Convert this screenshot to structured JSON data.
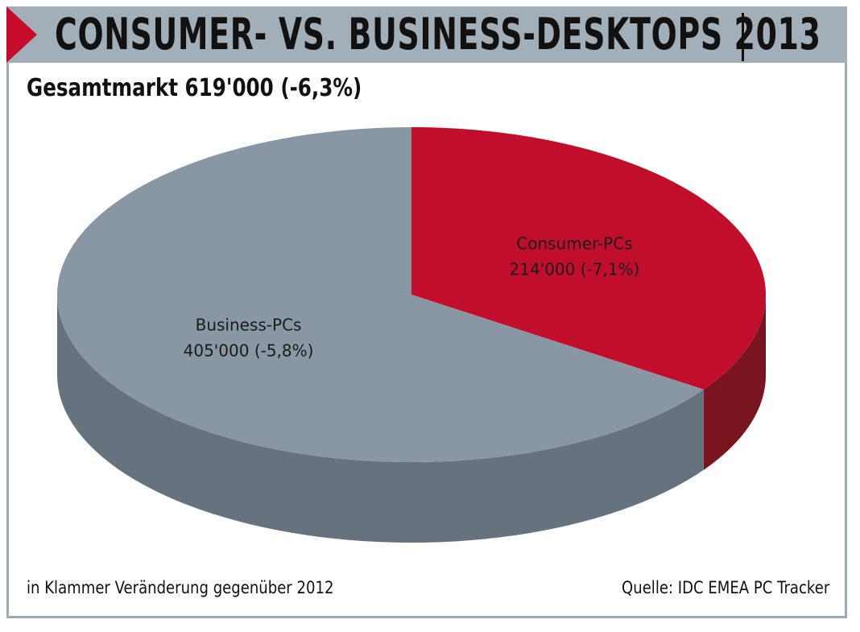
{
  "header": {
    "title": "CONSUMER- VS. BUSINESS-DESKTOPS 2013"
  },
  "subtitle": "Gesamtmarkt 619'000 (-6,3%)",
  "footnote": "in Klammer Veränderung gegenüber 2012",
  "source": "Quelle: IDC EMEA PC Tracker",
  "colors": {
    "accent": "#c60c2a",
    "consumer_top": "#c20e2d",
    "consumer_side": "#7a1520",
    "business_top": "#8997a4",
    "business_side": "#66737f",
    "header_bg": "#a3afb8"
  },
  "chart_data": {
    "type": "pie",
    "style": "3d",
    "title": "Gesamtmarkt 619'000 (-6,3%)",
    "total": 619000,
    "total_change_pct": -6.3,
    "slices": [
      {
        "name": "Consumer-PCs",
        "value": 214000,
        "value_label": "214'000 (-7,1%)",
        "change_pct": -7.1,
        "color": "#c20e2d",
        "side_color": "#7a1520"
      },
      {
        "name": "Business-PCs",
        "value": 405000,
        "value_label": "405'000 (-5,8%)",
        "change_pct": -5.8,
        "color": "#8997a4",
        "side_color": "#66737f"
      }
    ]
  }
}
